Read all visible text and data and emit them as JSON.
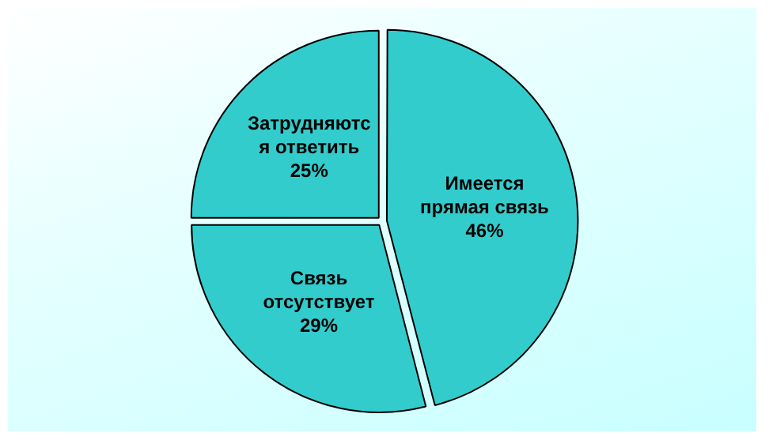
{
  "chart_data": {
    "type": "pie",
    "categories": [
      "Имеется прямая связь",
      "Связь отсутствует",
      "Затрудняются ответить"
    ],
    "values": [
      46,
      29,
      25
    ],
    "colors": [
      "#33cccc",
      "#33cccc",
      "#33cccc"
    ],
    "value_labels": [
      "46%",
      "29%",
      "25%"
    ],
    "legend": false
  }
}
